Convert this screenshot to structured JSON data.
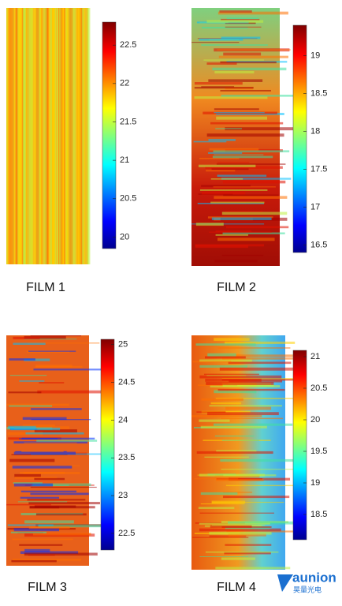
{
  "chart_data": [
    {
      "type": "heatmap",
      "title": "FILM 1",
      "clim": [
        19.85,
        22.8
      ],
      "ticks": [
        20,
        20.5,
        21,
        21.5,
        22,
        22.5
      ]
    },
    {
      "type": "heatmap",
      "title": "FILM 2",
      "clim": [
        16.4,
        19.4
      ],
      "ticks": [
        16.5,
        17,
        17.5,
        18,
        18.5,
        19
      ]
    },
    {
      "type": "heatmap",
      "title": "FILM 3",
      "clim": [
        22.28,
        25.07
      ],
      "ticks": [
        22.5,
        23,
        23.5,
        24,
        24.5,
        25
      ]
    },
    {
      "type": "heatmap",
      "title": "FILM 4",
      "clim": [
        18.1,
        21.1
      ],
      "ticks": [
        18.5,
        19,
        19.5,
        20,
        20.5,
        21
      ]
    }
  ],
  "logo": {
    "name": "aunion",
    "subtitle": "昊量光电"
  }
}
